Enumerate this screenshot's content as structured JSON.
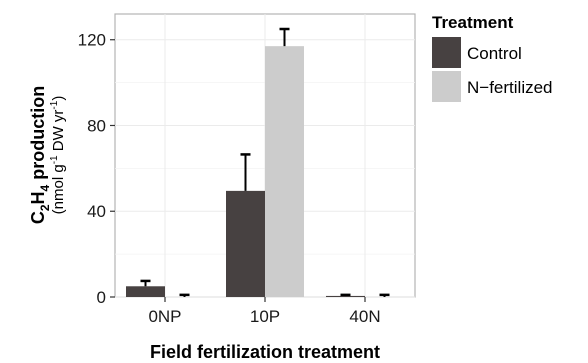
{
  "chart_data": {
    "type": "bar",
    "xlabel": "Field fertilization treatment",
    "ylabel": {
      "main_prefix": "C",
      "main_sub1": "2",
      "main_mid": "H",
      "main_sub2": "4",
      "main_suffix": " production",
      "unit_prefix": "(nmol g",
      "unit_sup1": "-1",
      "unit_mid": " DW yr",
      "unit_sup2": "-1",
      "unit_suffix": ")"
    },
    "categories": [
      "0NP",
      "10P",
      "40N"
    ],
    "ylim": [
      0,
      132
    ],
    "yticks": [
      0,
      40,
      80,
      120
    ],
    "grid": true,
    "legend": {
      "title": "Treatment",
      "position": "right"
    },
    "series": [
      {
        "name": "Control",
        "color": "#474141",
        "values": [
          5,
          49.5,
          0.5
        ],
        "errors": [
          2.5,
          17,
          0.5
        ]
      },
      {
        "name": "N−fertilized",
        "color": "#cccccc",
        "values": [
          0,
          117,
          0
        ],
        "errors": [
          1,
          8,
          1
        ]
      }
    ]
  }
}
